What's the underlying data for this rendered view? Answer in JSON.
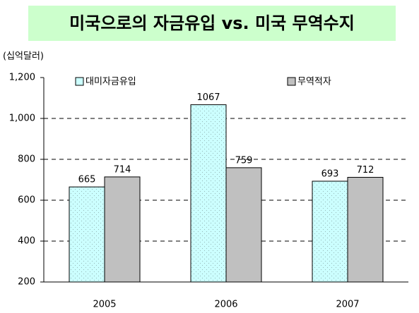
{
  "chart_data": {
    "type": "bar",
    "title": "미국으로의 자금유입 vs. 미국 무역수지",
    "y_axis_label": "(십억달러)",
    "categories": [
      "2005",
      "2006",
      "2007"
    ],
    "series": [
      {
        "name": "대미자금유입",
        "color": "#ccffff",
        "values": [
          665,
          1067,
          693
        ]
      },
      {
        "name": "무역적자",
        "color": "#c0c0c0",
        "values": [
          714,
          759,
          712
        ]
      }
    ],
    "ylim": [
      200,
      1200
    ],
    "yticks": [
      200,
      400,
      600,
      800,
      {
        "value": 1000,
        "label": "1,000"
      },
      {
        "value": 1200,
        "label": "1,200"
      }
    ],
    "grid": true,
    "legend": "top"
  }
}
